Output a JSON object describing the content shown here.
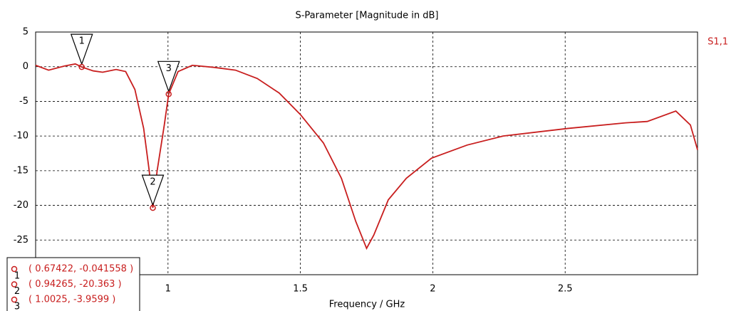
{
  "chart_data": {
    "type": "line",
    "title": "S-Parameter [Magnitude in dB]",
    "x_label": "Frequency / GHz",
    "xlim": [
      0.5,
      3
    ],
    "xticks": [
      1,
      1.5,
      2,
      2.5
    ],
    "ylim": [
      -30,
      5
    ],
    "yticks": [
      5,
      0,
      -5,
      -10,
      -15,
      -20,
      -25
    ],
    "grid": true,
    "legend": "top-right",
    "series": [
      {
        "name": "S1,1",
        "color": "#c81e1e",
        "x": [
          0.5,
          0.549,
          0.609,
          0.65,
          0.67422,
          0.717,
          0.753,
          0.804,
          0.84,
          0.875,
          0.908,
          0.929,
          0.94265,
          0.959,
          0.986,
          1.0025,
          1.038,
          1.092,
          1.174,
          1.255,
          1.337,
          1.42,
          1.5,
          1.587,
          1.655,
          1.709,
          1.75,
          1.777,
          1.832,
          1.9,
          1.995,
          2.13,
          2.266,
          2.511,
          2.728,
          2.81,
          2.918,
          2.973,
          3.0
        ],
        "values": [
          0.2,
          -0.5,
          0.1,
          0.4,
          -0.041558,
          -0.6,
          -0.8,
          -0.4,
          -0.7,
          -3.3,
          -8.9,
          -15,
          -20.363,
          -15,
          -8.4,
          -3.9599,
          -0.7,
          0.2,
          -0.1,
          -0.5,
          -1.7,
          -3.8,
          -6.9,
          -11,
          -16.1,
          -22.3,
          -26.2,
          -24.3,
          -19.2,
          -16.1,
          -13.2,
          -11.3,
          -10,
          -8.9,
          -8.1,
          -7.9,
          -6.4,
          -8.4,
          -12
        ]
      }
    ],
    "markers": [
      {
        "label": "1",
        "x": 0.67422,
        "y": -0.041558,
        "text": "( 0.67422, -0.041558 )"
      },
      {
        "label": "2",
        "x": 0.94265,
        "y": -20.363,
        "text": "( 0.94265, -20.363 )"
      },
      {
        "label": "3",
        "x": 1.0025,
        "y": -3.9599,
        "text": "( 1.0025, -3.9599 )"
      }
    ]
  }
}
